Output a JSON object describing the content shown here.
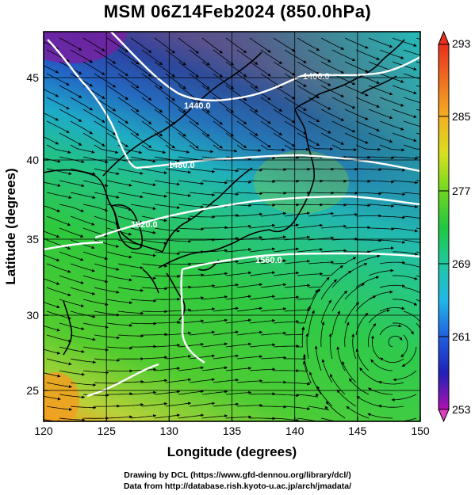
{
  "title": "MSM 06Z14Feb2024 (850.0hPa)",
  "axes": {
    "xlabel": "Longitude (degrees)",
    "ylabel": "Latitude  (degrees)",
    "x_ticks": [
      "120",
      "125",
      "130",
      "135",
      "140",
      "145",
      "150"
    ],
    "y_ticks": [
      "25",
      "30",
      "35",
      "40",
      "45"
    ]
  },
  "colorbar": {
    "ticks": [
      "293",
      "285",
      "277",
      "269",
      "261",
      "253"
    ]
  },
  "contour_labels": [
    "1400.0",
    "1440.0",
    "1480.0",
    "1520.0",
    "1560.0"
  ],
  "credits": {
    "line1": "Drawing by DCL (https://www.gfd-dennou.org/library/dcl/)",
    "line2": "Data from http://database.rish.kyoto-u.ac.jp/arch/jmadata/"
  },
  "chart_data": {
    "type": "heatmap",
    "variable": "850 hPa temperature (K) with wind streamlines and geopotential height contours",
    "x_range": [
      120,
      150
    ],
    "y_range": [
      22.5,
      48
    ],
    "color_range": [
      253,
      293
    ],
    "grid": true,
    "colors": {
      "contour": "#ffffff",
      "coastline": "#000000",
      "streamline": "#000000"
    }
  }
}
